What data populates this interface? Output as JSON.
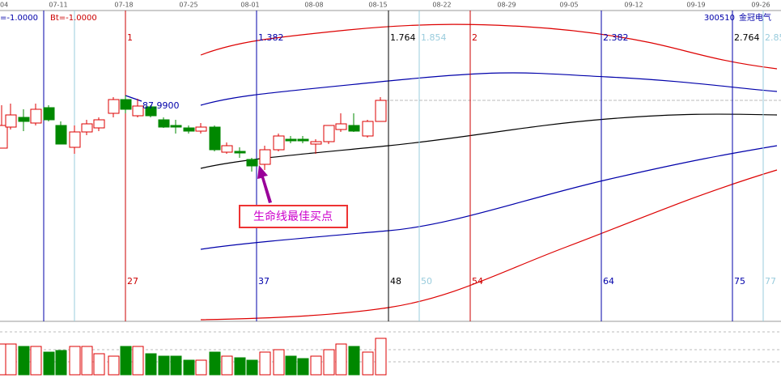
{
  "header": {
    "left_value": "=-1.0000",
    "bt_value": "Bt=-1.0000",
    "stock_code": "300510",
    "stock_name": "金冠电气"
  },
  "dates": [
    "04",
    "07-11",
    "07-18",
    "07-25",
    "08-01",
    "08-08",
    "08-15",
    "08-22",
    "08-29",
    "09-05",
    "09-12",
    "09-19",
    "09-26"
  ],
  "cycle_labels": {
    "top": [
      "1",
      "1.382",
      "1.764",
      "1.854",
      "2",
      "2.382",
      "2.764",
      "2.85"
    ],
    "bottom": [
      "27",
      "37",
      "48",
      "50",
      "54",
      "64",
      "75",
      "77"
    ]
  },
  "price_label": "87.9900",
  "annotation": "生命线最佳买点"
}
